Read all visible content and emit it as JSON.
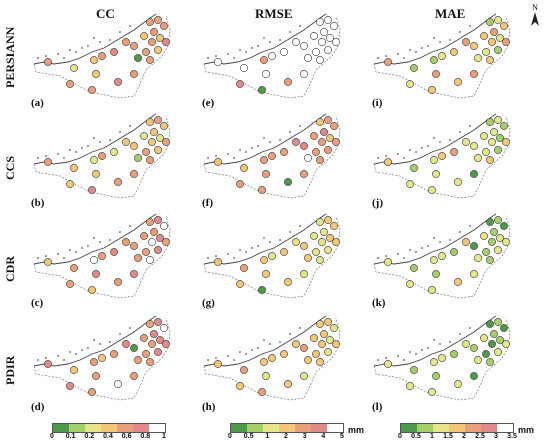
{
  "columns": [
    "CC",
    "RMSE",
    "MAE"
  ],
  "rows": [
    "PERSIANN",
    "CCS",
    "CDR",
    "PDIR"
  ],
  "north_label": "N",
  "panel_labels": [
    "(a)",
    "(e)",
    "(i)",
    "(b)",
    "(f)",
    "(j)",
    "(c)",
    "(g)",
    "(k)",
    "(d)",
    "(h)",
    "(l)"
  ],
  "legends": [
    {
      "colors": [
        "#4e9a4c",
        "#a4cf6b",
        "#e7e58c",
        "#f2c777",
        "#e8a07a",
        "#e18a8a",
        "#ffffff"
      ],
      "ticks": [
        "0",
        "0.1",
        "0.2",
        "0.4",
        "0.6",
        "0.8",
        "1"
      ],
      "unit": ""
    },
    {
      "colors": [
        "#4e9a4c",
        "#a4cf6b",
        "#e7e58c",
        "#f2c777",
        "#e8a07a",
        "#e18a8a",
        "#ffffff"
      ],
      "ticks": [
        "0",
        "0.5",
        "1",
        "2",
        "3",
        "4",
        "5"
      ],
      "unit": "mm"
    },
    {
      "colors": [
        "#4e9a4c",
        "#a4cf6b",
        "#e7e58c",
        "#f2c777",
        "#e8a07a",
        "#e18a8a",
        "#ffffff"
      ],
      "ticks": [
        "0",
        "0.5",
        "1",
        "1.5",
        "2",
        "2.5",
        "3",
        "3.5"
      ],
      "unit": "mm"
    }
  ],
  "colors": {
    "c0": "#4e9a4c",
    "c1": "#a4cf6b",
    "c2": "#e7e58c",
    "c3": "#f2c777",
    "c4": "#e8a07a",
    "c5": "#e18a8a",
    "c6": "#ffffff"
  },
  "panels": [
    [
      4,
      4,
      4,
      4,
      3,
      3,
      4,
      5,
      4,
      4,
      3,
      0,
      4,
      4,
      5,
      4,
      3,
      2,
      4,
      4,
      3,
      4,
      5,
      4
    ],
    [
      6,
      6,
      6,
      6,
      6,
      6,
      6,
      6,
      6,
      6,
      6,
      6,
      6,
      6,
      6,
      6,
      4,
      6,
      6,
      5,
      6,
      0,
      4,
      6
    ],
    [
      1,
      2,
      3,
      4,
      3,
      2,
      3,
      4,
      3,
      2,
      1,
      2,
      3,
      4,
      3,
      2,
      1,
      1,
      4,
      2,
      4,
      3,
      3,
      4
    ],
    [
      3,
      4,
      3,
      3,
      2,
      2,
      3,
      4,
      3,
      4,
      3,
      1,
      4,
      3,
      2,
      4,
      2,
      3,
      4,
      3,
      3,
      5,
      4,
      4
    ],
    [
      3,
      4,
      4,
      5,
      4,
      3,
      4,
      4,
      5,
      4,
      4,
      6,
      4,
      5,
      4,
      4,
      4,
      3,
      3,
      4,
      4,
      4,
      0,
      4
    ],
    [
      1,
      2,
      1,
      2,
      2,
      1,
      2,
      3,
      2,
      2,
      1,
      2,
      3,
      2,
      4,
      3,
      2,
      1,
      3,
      2,
      2,
      2,
      2,
      0
    ],
    [
      4,
      5,
      6,
      4,
      4,
      5,
      6,
      4,
      4,
      4,
      5,
      4,
      6,
      4,
      5,
      4,
      6,
      4,
      3,
      4,
      5,
      3,
      4,
      5
    ],
    [
      2,
      3,
      3,
      2,
      2,
      3,
      2,
      3,
      3,
      2,
      2,
      3,
      2,
      2,
      3,
      2,
      3,
      4,
      3,
      3,
      3,
      0,
      3,
      2
    ],
    [
      0,
      1,
      0,
      1,
      2,
      2,
      1,
      2,
      0,
      1,
      2,
      2,
      1,
      3,
      1,
      2,
      2,
      1,
      2,
      2,
      1,
      2,
      3,
      2
    ],
    [
      4,
      5,
      6,
      5,
      4,
      5,
      4,
      5,
      0,
      4,
      5,
      4,
      4,
      5,
      4,
      3,
      4,
      3,
      5,
      5,
      4,
      4,
      6,
      4
    ],
    [
      3,
      3,
      2,
      3,
      3,
      2,
      3,
      3,
      4,
      3,
      2,
      3,
      3,
      3,
      3,
      3,
      3,
      4,
      3,
      3,
      2,
      4,
      3,
      2
    ],
    [
      0,
      1,
      0,
      1,
      2,
      1,
      0,
      2,
      1,
      0,
      2,
      2,
      1,
      2,
      1,
      2,
      2,
      1,
      2,
      2,
      1,
      2,
      2,
      0
    ]
  ]
}
